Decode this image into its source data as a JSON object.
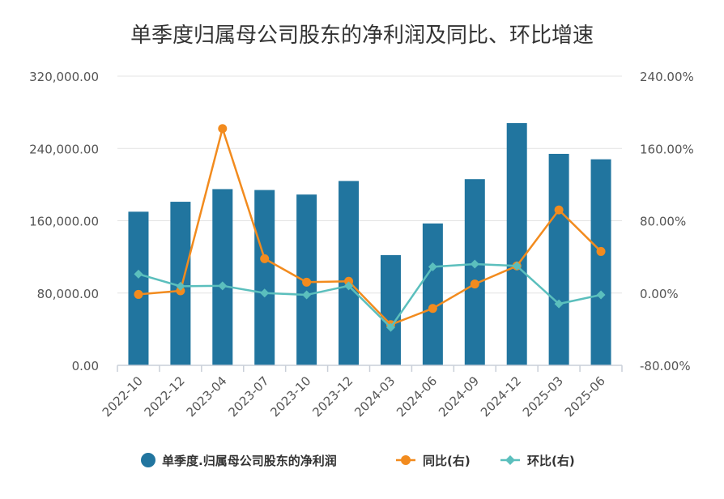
{
  "chart_data": {
    "type": "bar",
    "title": "单季度归属母公司股东的净利润及同比、环比增速",
    "categories": [
      "2022-10",
      "2022-12",
      "2023-04",
      "2023-07",
      "2023-10",
      "2023-12",
      "2024-03",
      "2024-06",
      "2024-09",
      "2024-12",
      "2025-03",
      "2025-06"
    ],
    "left_axis": {
      "ylim": [
        0,
        320000
      ],
      "ticks": [
        0,
        80000,
        160000,
        240000,
        320000
      ],
      "tick_labels": [
        "0.00",
        "80,000.00",
        "160,000.00",
        "240,000.00",
        "320,000.00"
      ]
    },
    "right_axis": {
      "ylim": [
        -80,
        240
      ],
      "ticks": [
        -80,
        0,
        80,
        160,
        240
      ],
      "tick_labels": [
        "-80.00%",
        "0.00%",
        "80.00%",
        "160.00%",
        "240.00%"
      ]
    },
    "series": [
      {
        "name": "单季度.归属母公司股东的净利润",
        "type": "bar",
        "axis": "left",
        "color": "#21759f",
        "values": [
          170000,
          181000,
          195000,
          194000,
          189000,
          204000,
          122000,
          157000,
          206000,
          268000,
          234000,
          228000
        ]
      },
      {
        "name": "同比(右)",
        "type": "line",
        "axis": "right",
        "color": "#f28b1e",
        "marker": "circle",
        "values": [
          -1.5,
          2.5,
          182,
          38,
          12,
          13,
          -35,
          -17,
          10,
          30,
          92,
          46
        ]
      },
      {
        "name": "环比(右)",
        "type": "line",
        "axis": "right",
        "color": "#5bbfbd",
        "marker": "diamond",
        "values": [
          21,
          7.5,
          8,
          0,
          -2,
          8,
          -38,
          29,
          32,
          30,
          -12,
          -2
        ]
      }
    ],
    "legend_position": "bottom-center",
    "grid": true
  }
}
